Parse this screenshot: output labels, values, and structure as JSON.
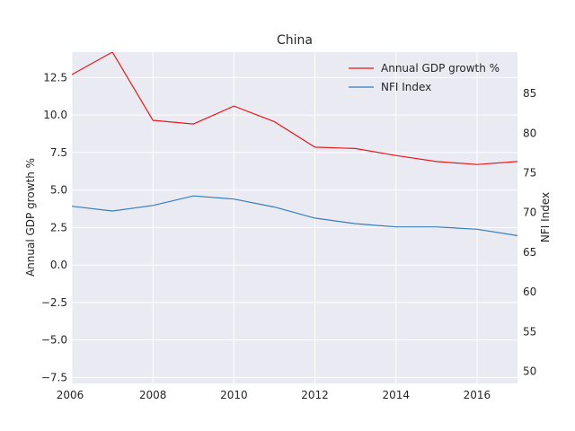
{
  "chart_data": {
    "type": "line",
    "title": "China",
    "xlabel": "",
    "ylabel_left": "Annual GDP growth %",
    "ylabel_right": "NFI Index",
    "xlim": [
      2006,
      2017
    ],
    "ylim_left": [
      -7.9,
      14.2
    ],
    "ylim_right": [
      48.5,
      90.2
    ],
    "xticks": [
      "2006",
      "2008",
      "2010",
      "2012",
      "2014",
      "2016"
    ],
    "yticks_left": [
      "12.5",
      "10.0",
      "7.5",
      "5.0",
      "2.5",
      "0.0",
      "−2.5",
      "−5.0",
      "−7.5"
    ],
    "yticks_right": [
      "85",
      "80",
      "75",
      "70",
      "65",
      "60",
      "55",
      "50"
    ],
    "grid": true,
    "legend_position": "top-right",
    "x": [
      2006,
      2007,
      2008,
      2009,
      2010,
      2011,
      2012,
      2013,
      2014,
      2015,
      2016,
      2017
    ],
    "series": [
      {
        "name": "Annual GDP growth %",
        "axis": "left",
        "color": "#e41a1c",
        "values": [
          12.7,
          14.2,
          9.65,
          9.4,
          10.6,
          9.55,
          7.86,
          7.77,
          7.3,
          6.9,
          6.7,
          6.9
        ]
      },
      {
        "name": "NFI Index",
        "axis": "right",
        "color": "#377eb8",
        "values": [
          70.8,
          70.2,
          70.9,
          72.1,
          71.7,
          70.7,
          69.3,
          68.6,
          68.2,
          68.2,
          67.9,
          67.1
        ]
      }
    ]
  }
}
